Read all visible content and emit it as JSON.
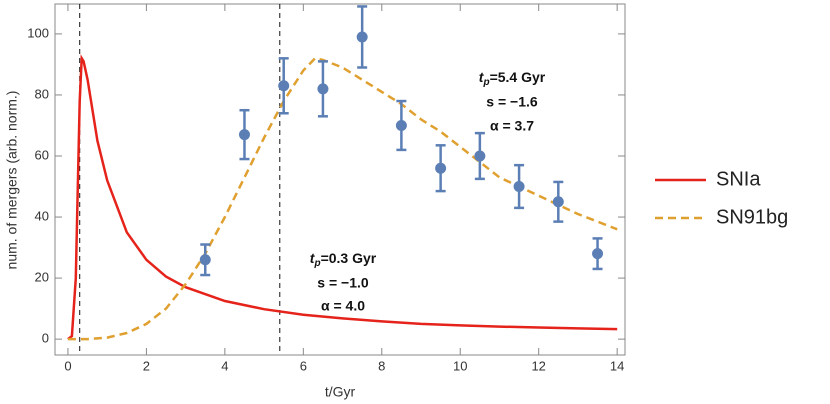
{
  "chart_data": {
    "type": "line",
    "xlabel": "t/Gyr",
    "ylabel": "num. of mergers (arb. norm.)",
    "xlim": [
      -0.33,
      14.2
    ],
    "ylim": [
      -5.2,
      109.8
    ],
    "xticks": [
      0,
      2,
      4,
      6,
      8,
      10,
      12,
      14
    ],
    "yticks": [
      0,
      20,
      40,
      60,
      80,
      100
    ],
    "vlines": [
      0.3,
      5.4
    ],
    "series": [
      {
        "name": "SNIa",
        "color": "#e5231b",
        "style": "solid",
        "x": [
          0,
          0.1,
          0.2,
          0.25,
          0.3,
          0.35,
          0.4,
          0.5,
          0.75,
          1,
          1.5,
          2,
          2.5,
          3,
          4,
          5,
          6,
          7,
          8,
          9,
          10,
          11,
          12,
          13,
          14
        ],
        "values": [
          0,
          1,
          20,
          50,
          78,
          92,
          91,
          85,
          65,
          52,
          35,
          26,
          20.5,
          17,
          12.5,
          9.8,
          8,
          6.8,
          5.8,
          5,
          4.5,
          4.1,
          3.8,
          3.5,
          3.3
        ]
      },
      {
        "name": "SN91bg",
        "color": "#e0a030",
        "style": "dashed",
        "x": [
          0,
          0.5,
          1,
          1.5,
          2,
          2.5,
          3,
          3.5,
          4,
          4.5,
          5,
          5.5,
          6,
          6.3,
          6.5,
          7,
          7.5,
          8,
          8.5,
          9,
          9.5,
          10,
          10.5,
          11,
          11.5,
          12,
          12.5,
          13,
          13.5,
          14
        ],
        "values": [
          0,
          0,
          0.5,
          2,
          5,
          10,
          18,
          28,
          40,
          53,
          66,
          78,
          88,
          92,
          91.5,
          89,
          85,
          81,
          77,
          72,
          68,
          63,
          58,
          53,
          50,
          47,
          44,
          41,
          38.5,
          36
        ]
      }
    ],
    "points": {
      "color": "#5b7fb5",
      "x": [
        3.5,
        4.5,
        5.5,
        6.5,
        7.5,
        8.5,
        9.5,
        10.5,
        11.5,
        12.5,
        13.5
      ],
      "values": [
        26,
        67,
        83,
        82,
        99,
        70,
        56,
        60,
        50,
        45,
        28
      ],
      "errors": [
        5,
        8,
        9,
        9,
        10,
        8,
        7.5,
        7.5,
        7,
        6.5,
        5
      ]
    },
    "annotations": [
      {
        "t": "t",
        "sub": "p",
        "rest": "=5.4 Gyr",
        "s": "s = −1.6",
        "alpha": "α = 3.7"
      },
      {
        "t": "t",
        "sub": "p",
        "rest": "=0.3 Gyr",
        "s": "s = −1.0",
        "alpha": "α = 4.0"
      }
    ]
  }
}
